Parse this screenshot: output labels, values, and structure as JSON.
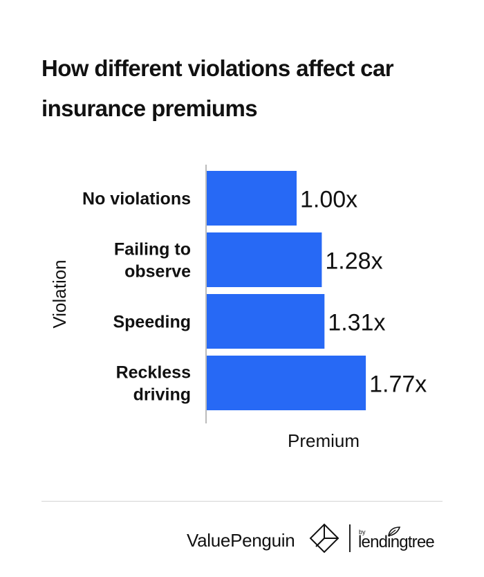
{
  "title": "How different violations affect car insurance premiums",
  "chart_data": {
    "type": "bar",
    "orientation": "horizontal",
    "categories": [
      [
        "No violations"
      ],
      [
        "Failing to",
        "observe"
      ],
      [
        "Speeding"
      ],
      [
        "Reckless",
        "driving"
      ]
    ],
    "values": [
      1.0,
      1.28,
      1.31,
      1.77
    ],
    "value_labels": [
      "1.00x",
      "1.28x",
      "1.31x",
      "1.77x"
    ],
    "xlabel": "Premium",
    "ylabel": "Violation",
    "xlim": [
      0,
      2.35
    ],
    "bar_color": "#2769f5",
    "grid": false
  },
  "footer": {
    "brand": "ValuePenguin",
    "partner_by": "by",
    "partner": "lendingtree"
  }
}
